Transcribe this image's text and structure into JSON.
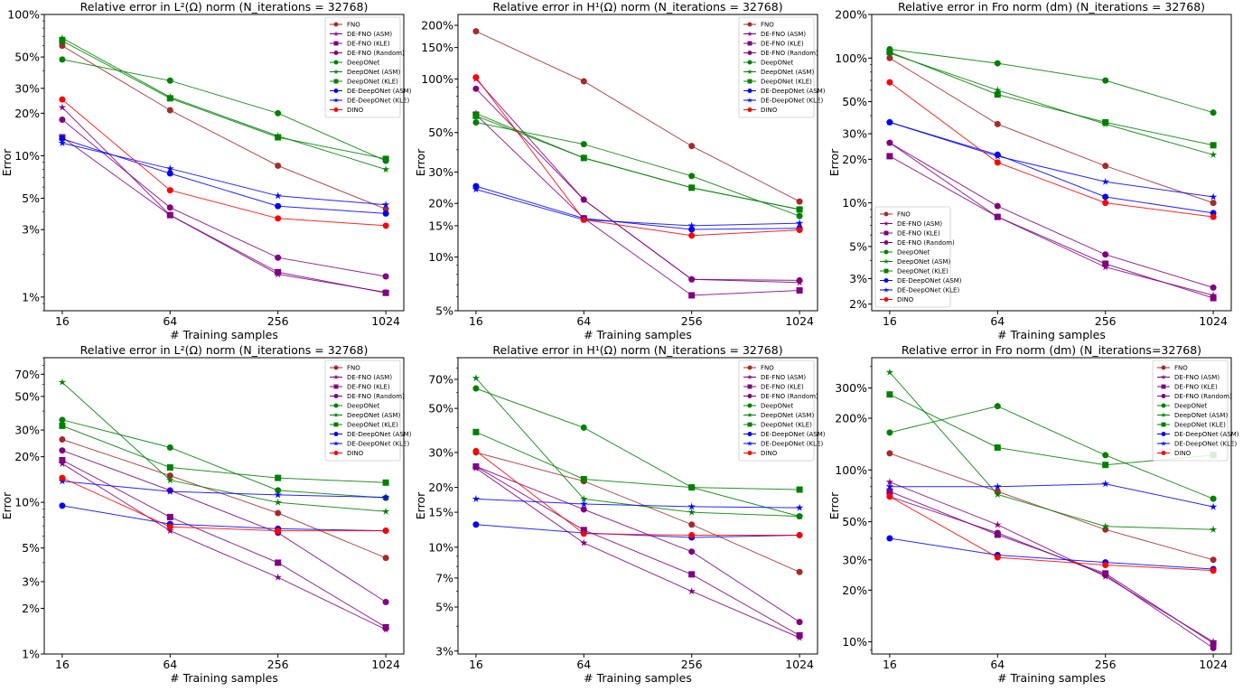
{
  "chart_data": [
    {
      "type": "line",
      "title": "Relative error in L²(Ω) norm (N_iterations = 32768)",
      "xlabel": "# Training samples",
      "ylabel": "Error",
      "x": [
        16,
        64,
        256,
        1024
      ],
      "xscale": "log2",
      "yscale": "log",
      "y_unit": "%",
      "ylim": [
        0.8,
        100
      ],
      "yticks": [
        1,
        3,
        5,
        10,
        20,
        30,
        50,
        100
      ],
      "legend_position": "top-right",
      "series": [
        {
          "name": "FNO",
          "values": [
            60,
            21,
            8.5,
            4.2
          ]
        },
        {
          "name": "DE-FNO (ASM)",
          "values": [
            22,
            3.8,
            1.45,
            1.08
          ]
        },
        {
          "name": "DE-FNO (KLE)",
          "values": [
            13.5,
            3.8,
            1.5,
            1.07
          ]
        },
        {
          "name": "DE-FNO (Random)",
          "values": [
            18,
            4.3,
            1.9,
            1.4
          ]
        },
        {
          "name": "DeepONet",
          "values": [
            48,
            34,
            20,
            9.2
          ]
        },
        {
          "name": "DeepONet (ASM)",
          "values": [
            68,
            26,
            13.8,
            8
          ]
        },
        {
          "name": "DeepONet (KLE)",
          "values": [
            65,
            25.5,
            13.5,
            9.5
          ]
        },
        {
          "name": "DE-DeepONet (ASM)",
          "values": [
            13.2,
            7.5,
            4.4,
            3.9
          ]
        },
        {
          "name": "DE-DeepONet (KLE)",
          "values": [
            12.3,
            8.1,
            5.2,
            4.5
          ]
        },
        {
          "name": "DINO",
          "values": [
            25,
            5.7,
            3.6,
            3.2
          ]
        }
      ]
    },
    {
      "type": "line",
      "title": "Relative error in H¹(Ω) norm (N_iterations = 32768)",
      "xlabel": "# Training samples",
      "ylabel": "Error",
      "x": [
        16,
        64,
        256,
        1024
      ],
      "xscale": "log2",
      "yscale": "log",
      "y_unit": "%",
      "ylim": [
        5,
        230
      ],
      "yticks": [
        5,
        10,
        15,
        20,
        30,
        50,
        100,
        150,
        200
      ],
      "legend_position": "top-right",
      "series": [
        {
          "name": "FNO",
          "values": [
            185,
            97,
            42,
            20.5
          ]
        },
        {
          "name": "DE-FNO (ASM)",
          "values": [
            100,
            21,
            7.5,
            7.2
          ]
        },
        {
          "name": "DE-FNO (KLE)",
          "values": [
            63,
            16.5,
            6.1,
            6.5
          ]
        },
        {
          "name": "DE-FNO (Random)",
          "values": [
            88,
            21,
            7.5,
            7.4
          ]
        },
        {
          "name": "DeepONet",
          "values": [
            57,
            43,
            28.5,
            17
          ]
        },
        {
          "name": "DeepONet (ASM)",
          "values": [
            64,
            36,
            24.5,
            18.5
          ]
        },
        {
          "name": "DeepONet (KLE)",
          "values": [
            62,
            36,
            24.5,
            18.5
          ]
        },
        {
          "name": "DE-DeepONet (ASM)",
          "values": [
            25,
            16.5,
            14.3,
            14.5
          ]
        },
        {
          "name": "DE-DeepONet (KLE)",
          "values": [
            24,
            16.2,
            15,
            15.5
          ]
        },
        {
          "name": "DINO",
          "values": [
            102,
            16.2,
            13.2,
            14.2
          ]
        }
      ]
    },
    {
      "type": "line",
      "title": "Relative error in Fro norm (dm) (N_iterations = 32768)",
      "xlabel": "# Training samples",
      "ylabel": "Error",
      "x": [
        16,
        64,
        256,
        1024
      ],
      "xscale": "log2",
      "yscale": "log",
      "y_unit": "%",
      "ylim": [
        1.8,
        200
      ],
      "yticks": [
        2,
        3,
        5,
        10,
        20,
        30,
        50,
        100,
        200
      ],
      "legend_position": "bottom-left",
      "series": [
        {
          "name": "FNO",
          "values": [
            100,
            35,
            18,
            10
          ]
        },
        {
          "name": "DE-FNO (ASM)",
          "values": [
            26,
            8,
            3.6,
            2.3
          ]
        },
        {
          "name": "DE-FNO (KLE)",
          "values": [
            21,
            8,
            3.8,
            2.2
          ]
        },
        {
          "name": "DE-FNO (Random)",
          "values": [
            26,
            9.5,
            4.4,
            2.6
          ]
        },
        {
          "name": "DeepONet",
          "values": [
            115,
            92,
            70,
            42
          ]
        },
        {
          "name": "DeepONet (ASM)",
          "values": [
            108,
            60,
            35,
            21.5
          ]
        },
        {
          "name": "DeepONet (KLE)",
          "values": [
            110,
            56,
            36,
            25
          ]
        },
        {
          "name": "DE-DeepONet (ASM)",
          "values": [
            36,
            21.5,
            11,
            8.5
          ]
        },
        {
          "name": "DE-DeepONet (KLE)",
          "values": [
            36,
            21,
            14,
            11
          ]
        },
        {
          "name": "DINO",
          "values": [
            68,
            19,
            10,
            8
          ]
        }
      ]
    },
    {
      "type": "line",
      "title": "Relative error in L²(Ω) norm (N_iterations = 32768)",
      "xlabel": "# Training samples",
      "ylabel": "Error",
      "x": [
        16,
        64,
        256,
        1024
      ],
      "xscale": "log2",
      "yscale": "log",
      "y_unit": "%",
      "ylim": [
        1,
        90
      ],
      "yticks": [
        1,
        2,
        3,
        5,
        10,
        20,
        30,
        50,
        70
      ],
      "legend_position": "top-right",
      "series": [
        {
          "name": "FNO",
          "values": [
            26,
            15,
            8.5,
            4.3
          ]
        },
        {
          "name": "DE-FNO (ASM)",
          "values": [
            18,
            6.5,
            3.2,
            1.45
          ]
        },
        {
          "name": "DE-FNO (KLE)",
          "values": [
            19,
            8,
            4,
            1.5
          ]
        },
        {
          "name": "DE-FNO (Random)",
          "values": [
            22,
            12,
            6.3,
            2.2
          ]
        },
        {
          "name": "DeepONet",
          "values": [
            35,
            23,
            12,
            10.7
          ]
        },
        {
          "name": "DeepONet (ASM)",
          "values": [
            62,
            14,
            10,
            8.7
          ]
        },
        {
          "name": "DeepONet (KLE)",
          "values": [
            32,
            17,
            14.5,
            13.5
          ]
        },
        {
          "name": "DE-DeepONet (ASM)",
          "values": [
            9.5,
            7.2,
            6.7,
            6.5
          ]
        },
        {
          "name": "DE-DeepONet (KLE)",
          "values": [
            13.8,
            11.8,
            11.2,
            10.8
          ]
        },
        {
          "name": "DINO",
          "values": [
            14.5,
            6.9,
            6.5,
            6.5
          ]
        }
      ]
    },
    {
      "type": "line",
      "title": "Relative error in H¹(Ω) norm (N_iterations = 32768)",
      "xlabel": "# Training samples",
      "ylabel": "Error",
      "x": [
        16,
        64,
        256,
        1024
      ],
      "xscale": "log2",
      "yscale": "log",
      "y_unit": "%",
      "ylim": [
        2.9,
        90
      ],
      "yticks": [
        3,
        5,
        7,
        10,
        15,
        20,
        30,
        50,
        70
      ],
      "legend_position": "top-right",
      "series": [
        {
          "name": "FNO",
          "values": [
            30,
            21.5,
            13,
            7.5
          ]
        },
        {
          "name": "DE-FNO (ASM)",
          "values": [
            25,
            10.5,
            6,
            3.5
          ]
        },
        {
          "name": "DE-FNO (KLE)",
          "values": [
            25.5,
            12.2,
            7.3,
            3.6
          ]
        },
        {
          "name": "DE-FNO (Random)",
          "values": [
            25.5,
            15.5,
            9.5,
            4.2
          ]
        },
        {
          "name": "DeepONet",
          "values": [
            63,
            40,
            20,
            14.3
          ]
        },
        {
          "name": "DeepONet (ASM)",
          "values": [
            71,
            17.5,
            15,
            14.3
          ]
        },
        {
          "name": "DeepONet (KLE)",
          "values": [
            38,
            22,
            20,
            19.5
          ]
        },
        {
          "name": "DE-DeepONet (ASM)",
          "values": [
            13,
            11.8,
            11.2,
            11.5
          ]
        },
        {
          "name": "DE-DeepONet (KLE)",
          "values": [
            17.5,
            16.5,
            16,
            15.8
          ]
        },
        {
          "name": "DINO",
          "values": [
            30.5,
            11.7,
            11.5,
            11.5
          ]
        }
      ]
    },
    {
      "type": "line",
      "title": "Relative error in Fro norm (dm) (N_iterations=32768)",
      "xlabel": "# Training samples",
      "ylabel": "Error",
      "x": [
        16,
        64,
        256,
        1024
      ],
      "xscale": "log2",
      "yscale": "log",
      "y_unit": "%",
      "ylim": [
        8.5,
        450
      ],
      "yticks": [
        10,
        20,
        30,
        50,
        100,
        200,
        300
      ],
      "legend_position": "top-right",
      "series": [
        {
          "name": "FNO",
          "values": [
            125,
            75,
            45,
            30
          ]
        },
        {
          "name": "DE-FNO (ASM)",
          "values": [
            85,
            48,
            24,
            10
          ]
        },
        {
          "name": "DE-FNO (KLE)",
          "values": [
            75,
            42,
            25,
            9.8
          ]
        },
        {
          "name": "DE-FNO (Random)",
          "values": [
            70,
            43,
            24.5,
            9.2
          ]
        },
        {
          "name": "DeepONet",
          "values": [
            165,
            235,
            122,
            68
          ]
        },
        {
          "name": "DeepONet (ASM)",
          "values": [
            370,
            72,
            47,
            45
          ]
        },
        {
          "name": "DeepONet (KLE)",
          "values": [
            275,
            135,
            107,
            122
          ]
        },
        {
          "name": "DE-DeepONet (ASM)",
          "values": [
            40,
            32,
            29,
            26.5
          ]
        },
        {
          "name": "DE-DeepONet (KLE)",
          "values": [
            80,
            80,
            83,
            61
          ]
        },
        {
          "name": "DINO",
          "values": [
            70,
            31,
            28,
            26
          ]
        }
      ]
    }
  ],
  "series_style": [
    {
      "color": "#a52a2a",
      "marker": "circle"
    },
    {
      "color": "#800080",
      "marker": "star"
    },
    {
      "color": "#800080",
      "marker": "square"
    },
    {
      "color": "#800080",
      "marker": "circle"
    },
    {
      "color": "#008000",
      "marker": "circle"
    },
    {
      "color": "#008000",
      "marker": "star"
    },
    {
      "color": "#008000",
      "marker": "square"
    },
    {
      "color": "#0000ff",
      "marker": "circle"
    },
    {
      "color": "#0000ff",
      "marker": "star"
    },
    {
      "color": "#ff0000",
      "marker": "circle"
    }
  ]
}
